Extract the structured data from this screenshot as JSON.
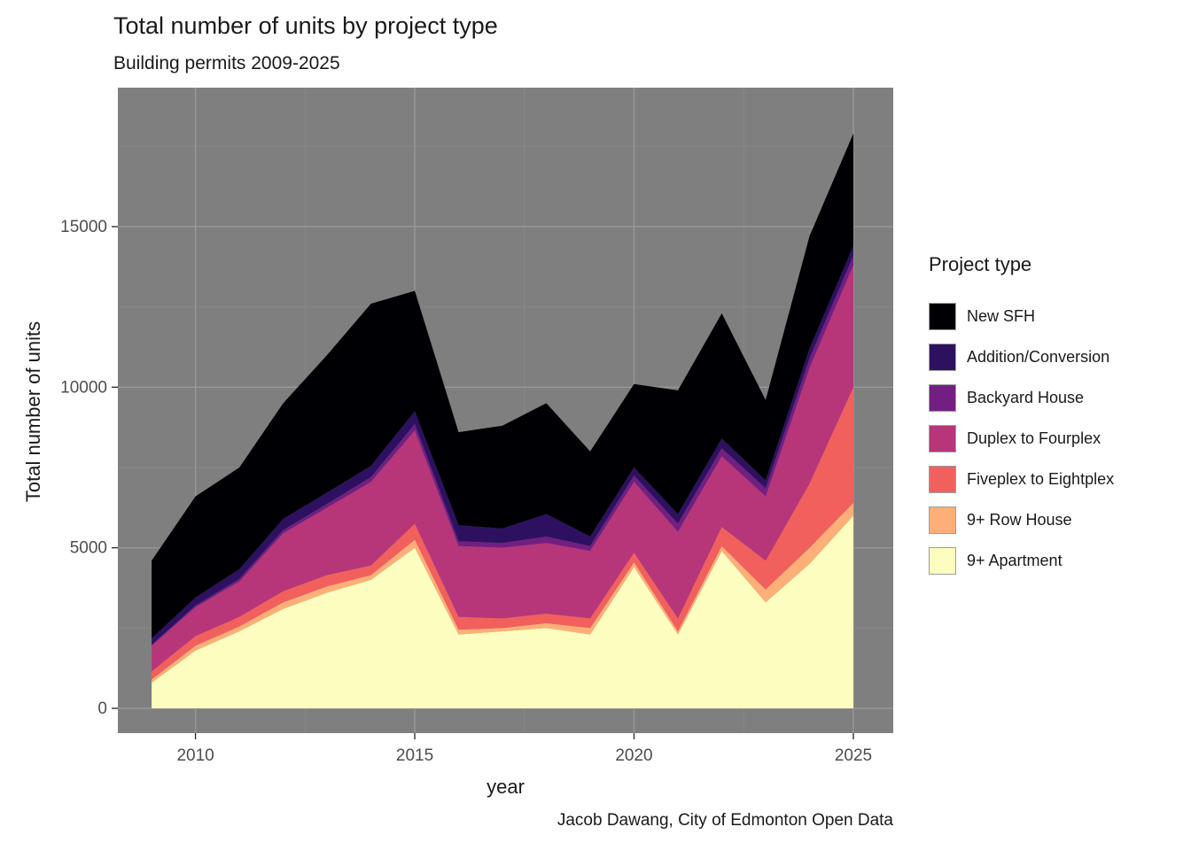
{
  "chart_data": {
    "type": "area",
    "stacked": true,
    "stack_order": "bottom-to-top",
    "title": "Total number of units by project type",
    "subtitle": "Building permits 2009-2025",
    "caption": "Jacob Dawang, City of Edmonton Open Data",
    "xlabel": "year",
    "ylabel": "Total number of units",
    "x": [
      2009,
      2010,
      2011,
      2012,
      2013,
      2014,
      2015,
      2016,
      2017,
      2018,
      2019,
      2020,
      2021,
      2022,
      2023,
      2024,
      2025
    ],
    "series": [
      {
        "name": "9+ Apartment",
        "color": "#FCFDBF",
        "values": [
          800,
          1800,
          2400,
          3100,
          3600,
          4000,
          5000,
          2300,
          2400,
          2500,
          2300,
          4400,
          2300,
          4900,
          3300,
          4500,
          6000
        ]
      },
      {
        "name": "9+ Row House",
        "color": "#FEAF77",
        "values": [
          100,
          150,
          150,
          200,
          200,
          150,
          250,
          150,
          100,
          150,
          200,
          150,
          100,
          150,
          400,
          500,
          400
        ]
      },
      {
        "name": "Fiveplex to Eightplex",
        "color": "#F1605D",
        "values": [
          250,
          300,
          300,
          350,
          350,
          300,
          500,
          400,
          300,
          300,
          300,
          300,
          400,
          600,
          900,
          2000,
          3600
        ]
      },
      {
        "name": "Duplex to Fourplex",
        "color": "#B63679",
        "values": [
          800,
          900,
          1100,
          1800,
          2100,
          2600,
          2900,
          2200,
          2200,
          2200,
          2100,
          2200,
          2700,
          2200,
          2000,
          3600,
          3800
        ]
      },
      {
        "name": "Backyard House",
        "color": "#721F81",
        "values": [
          30,
          50,
          80,
          100,
          120,
          150,
          200,
          150,
          150,
          200,
          150,
          200,
          250,
          250,
          250,
          300,
          300
        ]
      },
      {
        "name": "Addition/Conversion",
        "color": "#2D1160",
        "values": [
          200,
          250,
          300,
          350,
          350,
          350,
          400,
          500,
          450,
          700,
          300,
          250,
          300,
          300,
          250,
          300,
          300
        ]
      },
      {
        "name": "New SFH",
        "color": "#000004",
        "values": [
          2420,
          3150,
          3170,
          3600,
          4280,
          5050,
          3750,
          2900,
          3200,
          3450,
          2650,
          2600,
          3850,
          3900,
          2500,
          3500,
          3500
        ]
      }
    ],
    "xticks": [
      2010,
      2015,
      2020,
      2025
    ],
    "yticks": [
      0,
      5000,
      10000,
      15000
    ],
    "xticks_minor": [
      2012.5,
      2017.5,
      2022.5
    ],
    "yticks_minor": [
      2500,
      7500,
      12500,
      17500
    ],
    "xlim": [
      2008.23,
      2025.91
    ],
    "ylim": [
      -772,
      19327
    ],
    "panel_bg": "#7f7f7f",
    "grid_major_color": "#989898",
    "grid_minor_color": "#8b8b8b",
    "tick_color": "#333333",
    "tick_label_color": "#4d4d4d",
    "legend_position": "right",
    "grid": true
  },
  "legend": {
    "title": "Project type",
    "items": [
      {
        "label": "New SFH",
        "color": "#000004"
      },
      {
        "label": "Addition/Conversion",
        "color": "#2D1160"
      },
      {
        "label": "Backyard House",
        "color": "#721F81"
      },
      {
        "label": "Duplex to Fourplex",
        "color": "#B63679"
      },
      {
        "label": "Fiveplex to Eightplex",
        "color": "#F1605D"
      },
      {
        "label": "9+ Row House",
        "color": "#FEAF77"
      },
      {
        "label": "9+ Apartment",
        "color": "#FCFDBF"
      }
    ]
  }
}
